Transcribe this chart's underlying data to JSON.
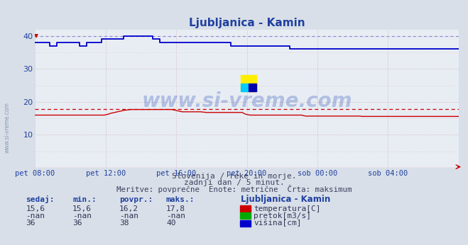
{
  "title": "Ljubljanica - Kamin",
  "bg_color": "#d8dfe8",
  "plot_bg_color": "#e8edf4",
  "title_color": "#2040a0",
  "tick_color": "#2040a0",
  "watermark": "www.si-vreme.com",
  "watermark_side": "www.si-vreme.com",
  "subtitle1": "Slovenija / reke in morje.",
  "subtitle2": "zadnji dan / 5 minut.",
  "subtitle3": "Meritve: povprečne  Enote: metrične  Črta: maksimum",
  "xlim": [
    0,
    288
  ],
  "ylim": [
    0,
    42
  ],
  "yticks": [
    0,
    10,
    20,
    30,
    40
  ],
  "xtick_labels": [
    "pet 08:00",
    "pet 12:00",
    "pet 16:00",
    "pet 20:00",
    "sob 00:00",
    "sob 04:00"
  ],
  "xtick_positions": [
    0,
    48,
    96,
    144,
    192,
    240
  ],
  "temp_max_line": 17.8,
  "height_max_line": 40.0,
  "legend_title": "Ljubljanica - Kamin",
  "legend_items": [
    {
      "label": "temperatura[C]",
      "color": "#cc0000"
    },
    {
      "label": "pretok[m3/s]",
      "color": "#00aa00"
    },
    {
      "label": "višina[cm]",
      "color": "#0000cc"
    }
  ],
  "table_headers": [
    "sedaj:",
    "min.:",
    "povpr.:",
    "maks.:"
  ],
  "table_rows": [
    [
      "15,6",
      "15,6",
      "16,2",
      "17,8"
    ],
    [
      "-nan",
      "-nan",
      "-nan",
      "-nan"
    ],
    [
      "36",
      "36",
      "38",
      "40"
    ]
  ],
  "temp_color": "#cc0000",
  "flow_color": "#00aa00",
  "height_color": "#0000cc",
  "grid_major_color": "#d0b8b8",
  "grid_minor_color": "#dcc8c8",
  "height_data": [
    38,
    38,
    38,
    38,
    38,
    38,
    38,
    38,
    38,
    38,
    37,
    37,
    37,
    37,
    37,
    38,
    38,
    38,
    38,
    38,
    38,
    38,
    38,
    38,
    38,
    38,
    38,
    38,
    38,
    38,
    37,
    37,
    37,
    37,
    37,
    38,
    38,
    38,
    38,
    38,
    38,
    38,
    38,
    38,
    38,
    39,
    39,
    39,
    39,
    39,
    39,
    39,
    39,
    39,
    39,
    39,
    39,
    39,
    39,
    39,
    40,
    40,
    40,
    40,
    40,
    40,
    40,
    40,
    40,
    40,
    40,
    40,
    40,
    40,
    40,
    40,
    40,
    40,
    40,
    40,
    39,
    39,
    39,
    39,
    39,
    38,
    38,
    38,
    38,
    38,
    38,
    38,
    38,
    38,
    38,
    38,
    38,
    38,
    38,
    38,
    38,
    38,
    38,
    38,
    38,
    38,
    38,
    38,
    38,
    38,
    38,
    38,
    38,
    38,
    38,
    38,
    38,
    38,
    38,
    38,
    38,
    38,
    38,
    38,
    38,
    38,
    38,
    38,
    38,
    38,
    38,
    38,
    38,
    37,
    37,
    37,
    37,
    37,
    37,
    37,
    37,
    37,
    37,
    37,
    37,
    37,
    37,
    37,
    37,
    37,
    37,
    37,
    37,
    37,
    37,
    37,
    37,
    37,
    37,
    37,
    37,
    37,
    37,
    37,
    37,
    37,
    37,
    37,
    37,
    37,
    37,
    37,
    37,
    36,
    36,
    36,
    36,
    36,
    36,
    36,
    36,
    36,
    36,
    36,
    36,
    36,
    36,
    36,
    36,
    36,
    36,
    36,
    36,
    36,
    36,
    36,
    36,
    36,
    36,
    36,
    36,
    36,
    36,
    36,
    36,
    36,
    36,
    36,
    36,
    36,
    36,
    36,
    36,
    36,
    36,
    36,
    36,
    36,
    36,
    36,
    36,
    36
  ],
  "temp_data": [
    16.0,
    16.0,
    16.0,
    16.0,
    16.0,
    16.0,
    16.0,
    16.0,
    16.0,
    16.0,
    16.0,
    16.0,
    16.0,
    16.0,
    16.0,
    16.0,
    16.0,
    16.0,
    16.0,
    16.0,
    16.0,
    16.0,
    16.0,
    16.0,
    16.0,
    16.0,
    16.0,
    16.0,
    16.0,
    16.0,
    16.0,
    16.0,
    16.0,
    16.0,
    16.0,
    16.0,
    16.0,
    16.0,
    16.0,
    16.0,
    16.0,
    16.0,
    16.0,
    16.0,
    16.0,
    16.0,
    16.0,
    16.0,
    16.1,
    16.2,
    16.3,
    16.5,
    16.6,
    16.7,
    16.8,
    16.9,
    17.0,
    17.1,
    17.2,
    17.3,
    17.4,
    17.5,
    17.5,
    17.6,
    17.6,
    17.7,
    17.7,
    17.7,
    17.7,
    17.7,
    17.7,
    17.7,
    17.7,
    17.7,
    17.7,
    17.7,
    17.7,
    17.7,
    17.7,
    17.7,
    17.7,
    17.7,
    17.7,
    17.7,
    17.7,
    17.7,
    17.7,
    17.7,
    17.7,
    17.7,
    17.7,
    17.7,
    17.7,
    17.7,
    17.6,
    17.5,
    17.4,
    17.3,
    17.2,
    17.1,
    17.0,
    17.0,
    17.0,
    17.0,
    17.0,
    17.0,
    17.0,
    17.0,
    17.0,
    17.0,
    17.0,
    17.0,
    17.0,
    17.0,
    16.9,
    16.9,
    16.8,
    16.8,
    16.8,
    16.8,
    16.8,
    16.8,
    16.8,
    16.8,
    16.8,
    16.8,
    16.8,
    16.8,
    16.8,
    16.8,
    16.8,
    16.8,
    16.8,
    16.8,
    16.8,
    16.8,
    16.8,
    16.8,
    16.8,
    16.8,
    16.8,
    16.8,
    16.5,
    16.3,
    16.2,
    16.1,
    16.0,
    16.0,
    16.0,
    16.0,
    16.0,
    16.0,
    16.0,
    16.0,
    16.0,
    16.0,
    16.0,
    16.0,
    16.0,
    16.0,
    16.0,
    16.0,
    16.0,
    16.0,
    16.0,
    16.0,
    16.0,
    16.0,
    16.0,
    16.0,
    16.0,
    16.0,
    16.0,
    16.0,
    16.0,
    16.0,
    16.0,
    16.0,
    16.0,
    16.0,
    16.0,
    16.0,
    15.9,
    15.8,
    15.7,
    15.7,
    15.7,
    15.7,
    15.7,
    15.7,
    15.7,
    15.7,
    15.7,
    15.7,
    15.7,
    15.7,
    15.7,
    15.7,
    15.7,
    15.7,
    15.7,
    15.7,
    15.7,
    15.7,
    15.7,
    15.7,
    15.7,
    15.7,
    15.7,
    15.7,
    15.7,
    15.7,
    15.7,
    15.7,
    15.7,
    15.7,
    15.7,
    15.7,
    15.7,
    15.7,
    15.7,
    15.7,
    15.6,
    15.6,
    15.6,
    15.6,
    15.6,
    15.6,
    15.6,
    15.6,
    15.6
  ]
}
